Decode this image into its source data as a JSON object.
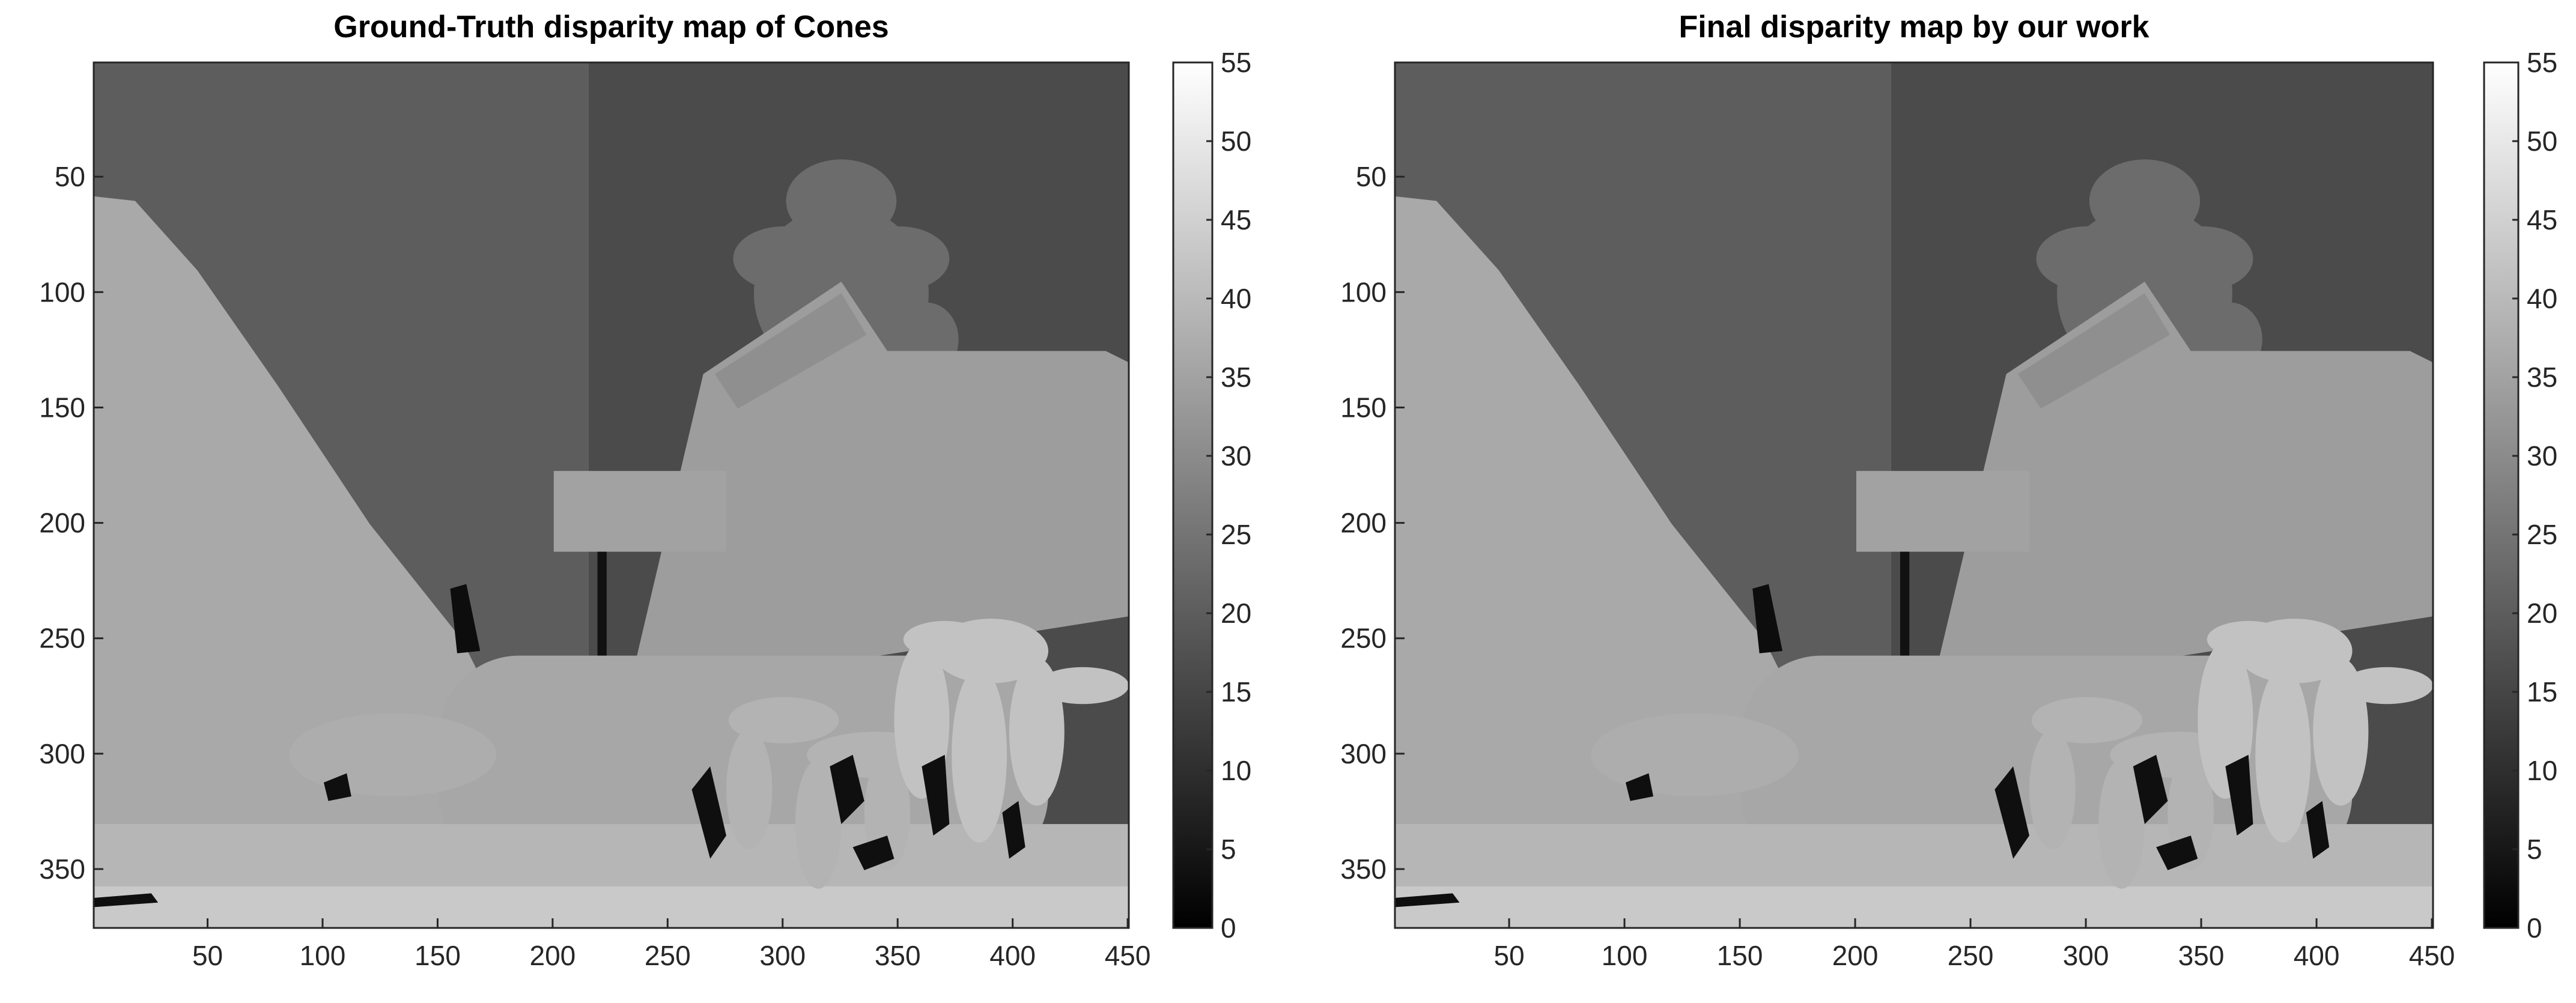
{
  "chart_data": [
    {
      "type": "image",
      "title": "Ground-Truth disparity map of Cones",
      "xlim": [
        0.5,
        450.5
      ],
      "ylim": [
        0.5,
        375.5
      ],
      "y_reversed": true,
      "xticks": [
        50,
        100,
        150,
        200,
        250,
        300,
        350,
        400,
        450
      ],
      "yticks": [
        50,
        100,
        150,
        200,
        250,
        300,
        350
      ],
      "colormap": "gray",
      "clim": [
        0,
        55
      ],
      "cticks": [
        0,
        5,
        10,
        15,
        20,
        25,
        30,
        35,
        40,
        45,
        50,
        55
      ]
    },
    {
      "type": "image",
      "title": "Final disparity map by our work",
      "xlim": [
        0.5,
        450.5
      ],
      "ylim": [
        0.5,
        375.5
      ],
      "y_reversed": true,
      "xticks": [
        50,
        100,
        150,
        200,
        250,
        300,
        350,
        400,
        450
      ],
      "yticks": [
        50,
        100,
        150,
        200,
        250,
        300,
        350
      ],
      "colormap": "gray",
      "clim": [
        0,
        55
      ],
      "cticks": [
        0,
        5,
        10,
        15,
        20,
        25,
        30,
        35,
        40,
        45,
        50,
        55
      ]
    }
  ]
}
